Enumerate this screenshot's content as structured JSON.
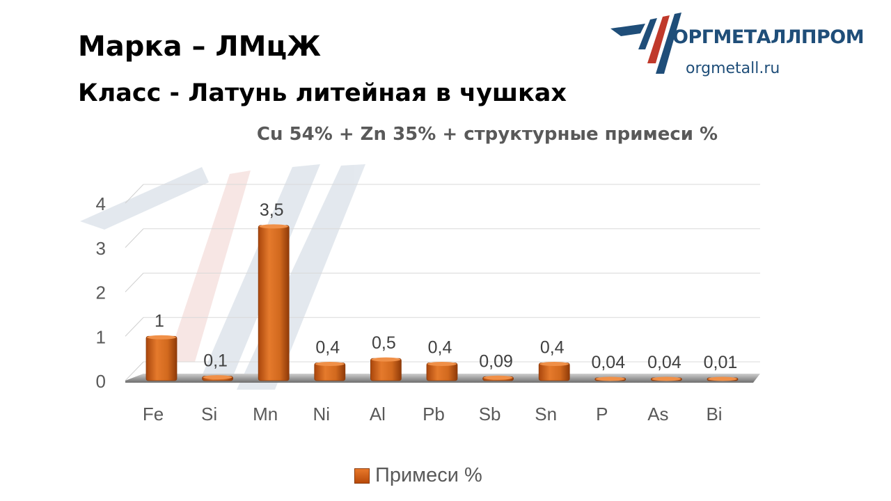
{
  "header": {
    "line1": "Марка – ЛМцЖ",
    "line2": "Класс -  Латунь литейная в чушках"
  },
  "logo": {
    "name": "ОРГМЕТАЛЛПРОМ",
    "url": "orgmetall.ru"
  },
  "colors": {
    "bar": "#d2691e",
    "logo_blue": "#1f4e79",
    "logo_red": "#c0392b",
    "text_gray": "#595959"
  },
  "chart_data": {
    "type": "bar",
    "title": "Cu 54% + Zn 35% + структурные примеси %",
    "categories": [
      "Fe",
      "Si",
      "Mn",
      "Ni",
      "Al",
      "Pb",
      "Sb",
      "Sn",
      "P",
      "As",
      "Bi"
    ],
    "series": [
      {
        "name": "Примеси %",
        "values": [
          1,
          0.1,
          3.5,
          0.4,
          0.5,
          0.4,
          0.09,
          0.4,
          0.04,
          0.04,
          0.01
        ],
        "labels": [
          "1",
          "0,1",
          "3,5",
          "0,4",
          "0,5",
          "0,4",
          "0,09",
          "0,4",
          "0,04",
          "0,04",
          "0,01"
        ]
      }
    ],
    "yticks": [
      0,
      1,
      2,
      3,
      4
    ],
    "ylim": [
      0,
      4
    ],
    "grid": true,
    "legend": "bottom"
  }
}
